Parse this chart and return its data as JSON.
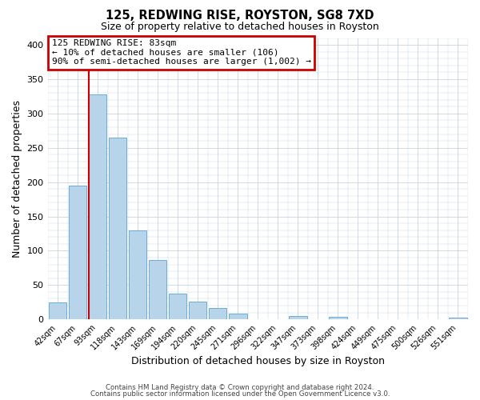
{
  "title": "125, REDWING RISE, ROYSTON, SG8 7XD",
  "subtitle": "Size of property relative to detached houses in Royston",
  "xlabel": "Distribution of detached houses by size in Royston",
  "ylabel": "Number of detached properties",
  "bin_labels": [
    "42sqm",
    "67sqm",
    "93sqm",
    "118sqm",
    "143sqm",
    "169sqm",
    "194sqm",
    "220sqm",
    "245sqm",
    "271sqm",
    "296sqm",
    "322sqm",
    "347sqm",
    "373sqm",
    "398sqm",
    "424sqm",
    "449sqm",
    "475sqm",
    "500sqm",
    "526sqm",
    "551sqm"
  ],
  "bar_heights": [
    25,
    195,
    328,
    265,
    130,
    86,
    38,
    26,
    17,
    8,
    0,
    0,
    5,
    0,
    4,
    0,
    0,
    0,
    0,
    0,
    3
  ],
  "bar_color": "#b8d4ea",
  "bar_edge_color": "#6baed6",
  "vline_color": "#cc0000",
  "annotation_text": "125 REDWING RISE: 83sqm\n← 10% of detached houses are smaller (106)\n90% of semi-detached houses are larger (1,002) →",
  "annotation_box_edgecolor": "#cc0000",
  "ylim": [
    0,
    410
  ],
  "yticks": [
    0,
    50,
    100,
    150,
    200,
    250,
    300,
    350,
    400
  ],
  "footer_line1": "Contains HM Land Registry data © Crown copyright and database right 2024.",
  "footer_line2": "Contains public sector information licensed under the Open Government Licence v3.0.",
  "bg_color": "#ffffff",
  "grid_color": "#c8d4e4"
}
